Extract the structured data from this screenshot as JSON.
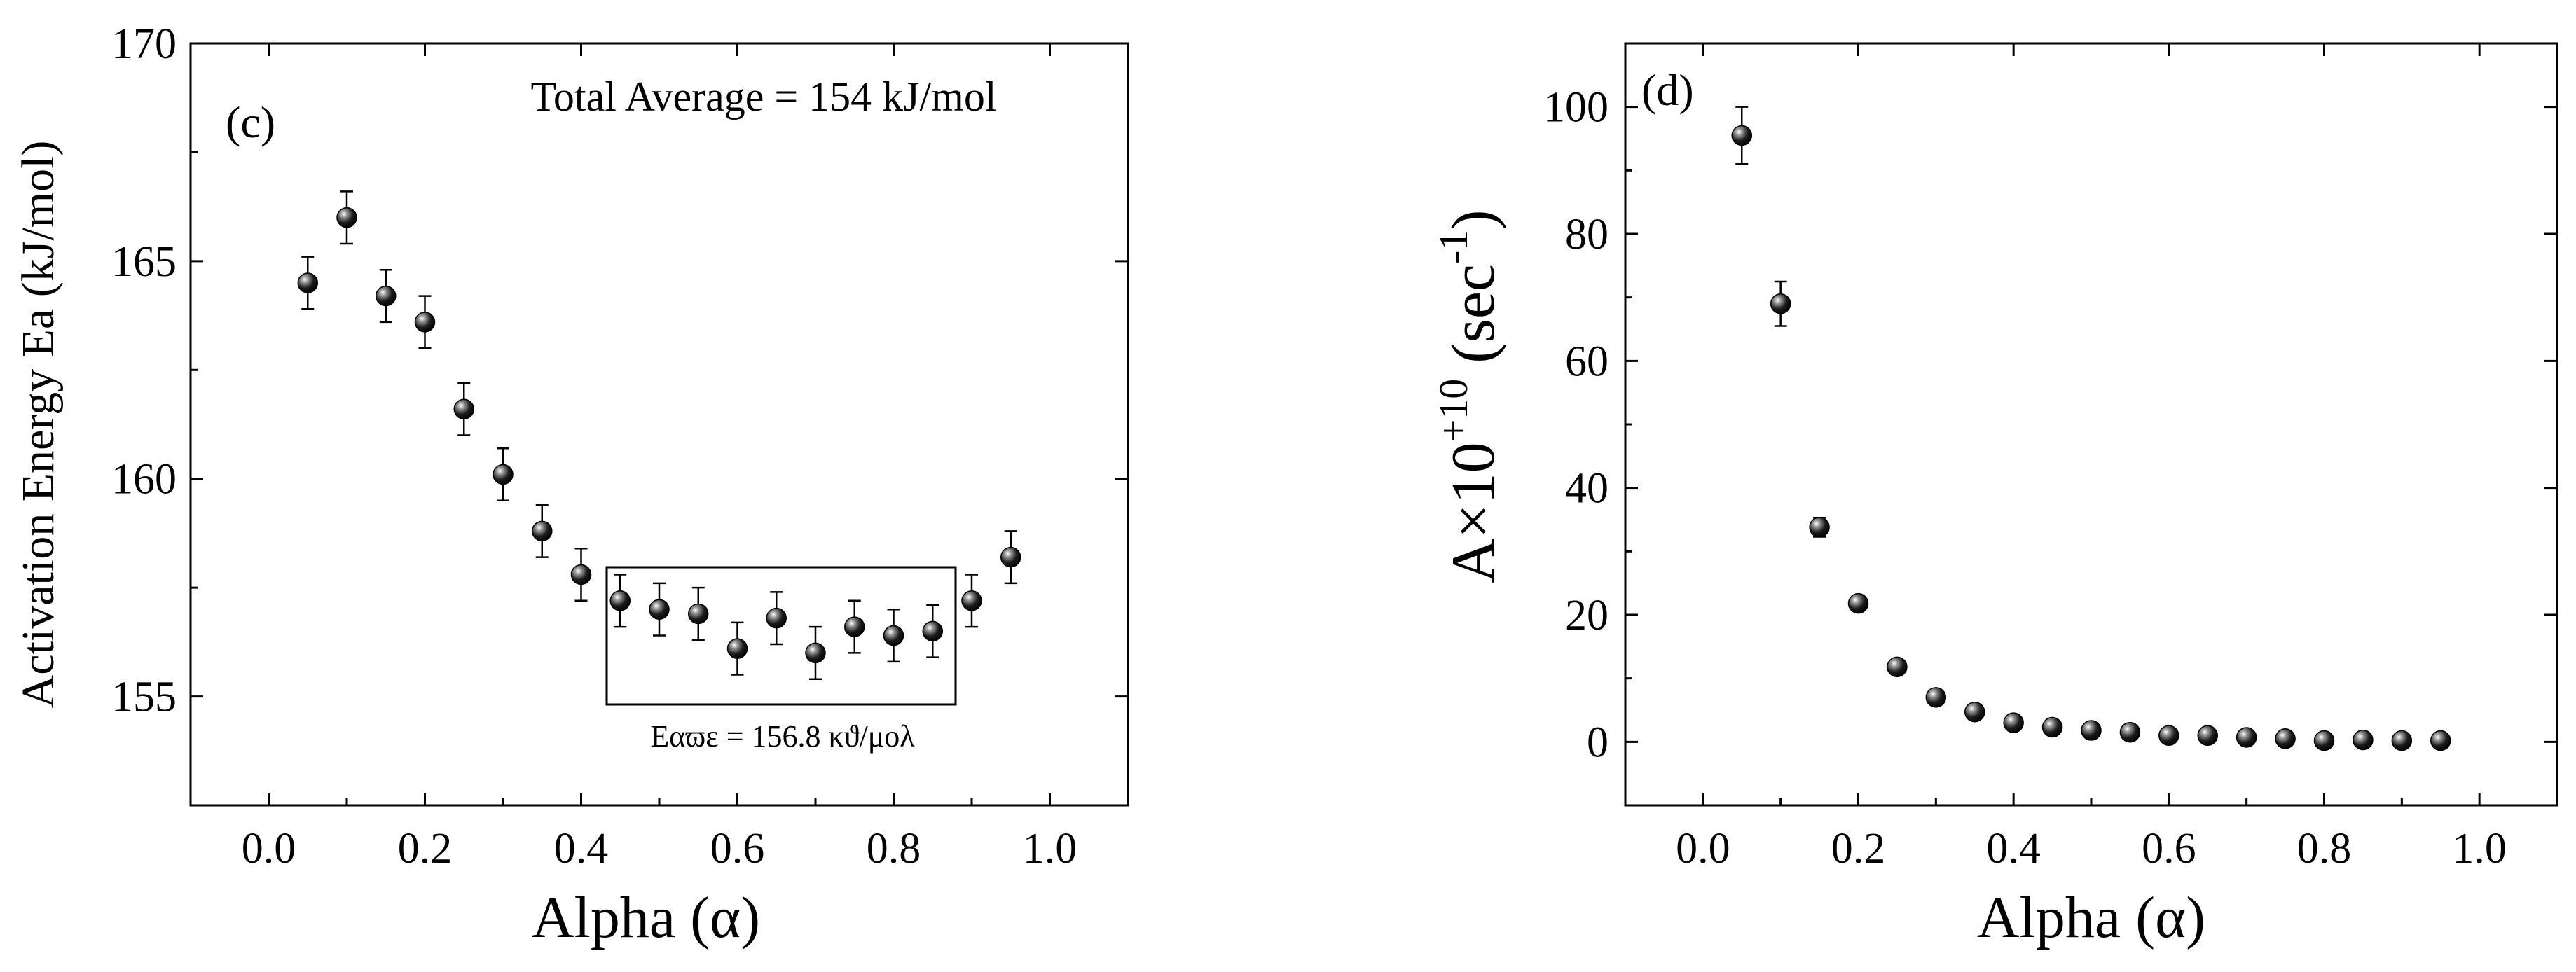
{
  "chart_data": [
    {
      "type": "scatter",
      "panel_label": "(c)",
      "title": "",
      "xlabel": "Alpha (α)",
      "ylabel": "Activation Energy Ea (kJ/mol)",
      "xlim": [
        -0.1,
        1.1
      ],
      "ylim": [
        152.5,
        170
      ],
      "xticks": [
        "0.0",
        "0.2",
        "0.4",
        "0.6",
        "0.8",
        "1.0"
      ],
      "yticks": [
        "155",
        "160",
        "165",
        "170"
      ],
      "annotation": "Total Average = 154 kJ/mol",
      "inset_label": "Eαϖε = 156.8 κϑ/μολ",
      "series": [
        {
          "name": "Ea",
          "x": [
            0.05,
            0.1,
            0.15,
            0.2,
            0.25,
            0.3,
            0.35,
            0.4,
            0.45,
            0.5,
            0.55,
            0.6,
            0.65,
            0.7,
            0.75,
            0.8,
            0.85,
            0.9,
            0.95
          ],
          "y": [
            164.5,
            166.0,
            164.2,
            163.6,
            161.6,
            160.1,
            158.8,
            157.8,
            157.2,
            157.0,
            156.9,
            156.1,
            156.8,
            156.0,
            156.6,
            156.4,
            156.5,
            157.2,
            158.2
          ],
          "error": [
            0.6,
            0.6,
            0.6,
            0.6,
            0.6,
            0.6,
            0.6,
            0.6,
            0.6,
            0.6,
            0.6,
            0.6,
            0.6,
            0.6,
            0.6,
            0.6,
            0.6,
            0.6,
            0.6
          ]
        }
      ]
    },
    {
      "type": "scatter",
      "panel_label": "(d)",
      "title": "",
      "xlabel": "Alpha (α)",
      "ylabel_main": "A×10",
      "ylabel_exp": "+10",
      "ylabel_unit": " (sec",
      "ylabel_unit_exp": "-1",
      "ylabel_close": ")",
      "xlim": [
        -0.1,
        1.1
      ],
      "ylim": [
        -10,
        110
      ],
      "xticks": [
        "0.0",
        "0.2",
        "0.4",
        "0.6",
        "0.8",
        "1.0"
      ],
      "yticks": [
        "0",
        "20",
        "40",
        "60",
        "80",
        "100"
      ],
      "series": [
        {
          "name": "A",
          "x": [
            0.05,
            0.1,
            0.15,
            0.2,
            0.25,
            0.3,
            0.35,
            0.4,
            0.45,
            0.5,
            0.55,
            0.6,
            0.65,
            0.7,
            0.75,
            0.8,
            0.85,
            0.9,
            0.95
          ],
          "y": [
            95.5,
            69.0,
            33.8,
            21.8,
            11.8,
            7.0,
            4.7,
            3.0,
            2.3,
            1.8,
            1.5,
            1.0,
            1.0,
            0.7,
            0.5,
            0.2,
            0.3,
            0.2,
            0.2
          ],
          "error": [
            4.5,
            3.5,
            1.5,
            0.8,
            0.5,
            0.3,
            0.3,
            0.2,
            0.2,
            0.2,
            0.2,
            0.1,
            0.1,
            0.1,
            0.1,
            0.1,
            0.1,
            0.1,
            0.1
          ]
        }
      ]
    }
  ]
}
